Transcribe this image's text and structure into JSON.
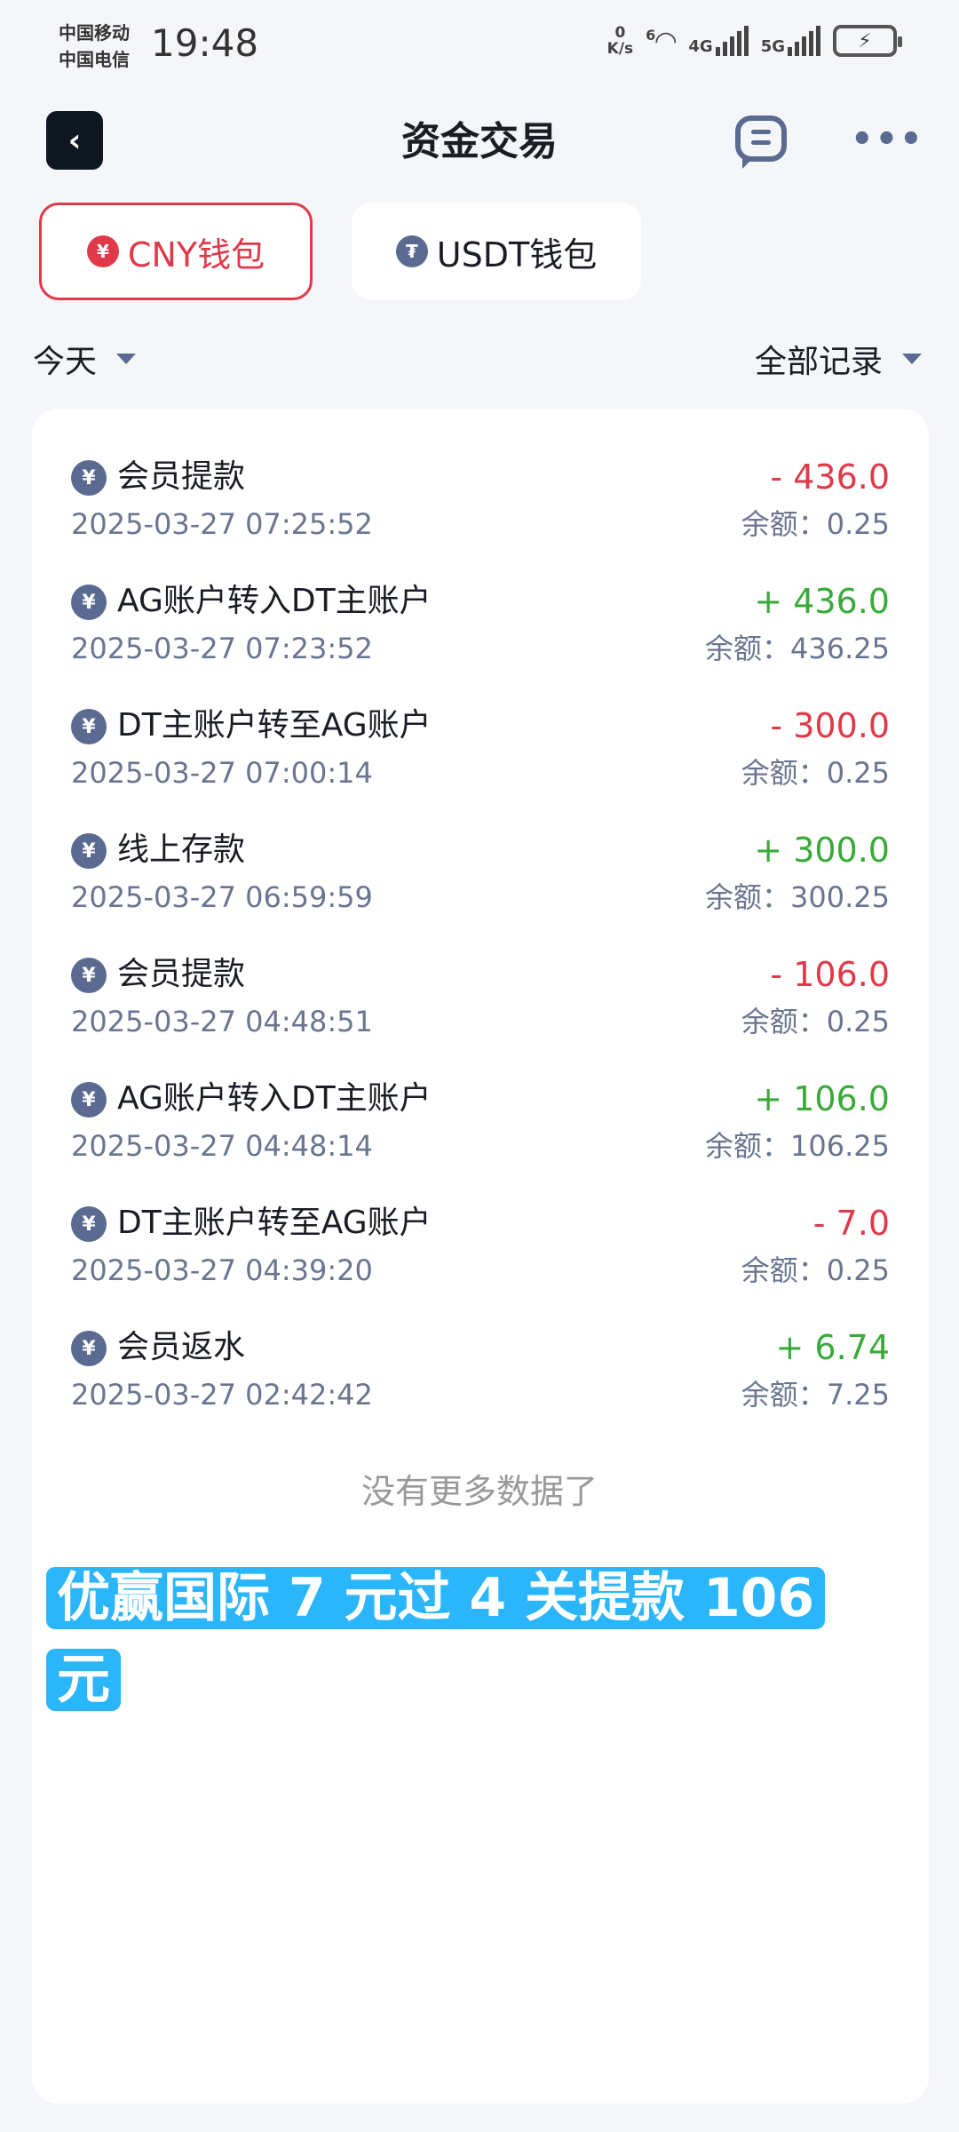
{
  "status_bar": {
    "carrier1": "中国移动",
    "carrier2": "中国电信",
    "time": "19:48",
    "net_speed_value": "0",
    "net_speed_unit": "K/s",
    "wifi_label": "6",
    "sig1_label": "4G",
    "sig2_label": "5G"
  },
  "header": {
    "title": "资金交易",
    "back_icon": "chevron-left-icon",
    "chat_icon": "message-icon",
    "more_icon": "more-dots-icon"
  },
  "tabs": [
    {
      "label": "CNY钱包",
      "icon": "¥",
      "active": true
    },
    {
      "label": "USDT钱包",
      "icon": "₮",
      "active": false
    }
  ],
  "filters": {
    "date": "今天",
    "type": "全部记录"
  },
  "colors": {
    "negative": "#e0394a",
    "positive": "#3aaa3a",
    "overlay": "#2bb5fb"
  },
  "transactions": [
    {
      "name": "会员提款",
      "date": "2025-03-27 07:25:52",
      "amount": "- 436.0",
      "sign": "neg",
      "balance": "余额：0.25"
    },
    {
      "name": "AG账户转入DT主账户",
      "date": "2025-03-27 07:23:52",
      "amount": "+ 436.0",
      "sign": "pos",
      "balance": "余额：436.25"
    },
    {
      "name": "DT主账户转至AG账户",
      "date": "2025-03-27 07:00:14",
      "amount": "- 300.0",
      "sign": "neg",
      "balance": "余额：0.25"
    },
    {
      "name": "线上存款",
      "date": "2025-03-27 06:59:59",
      "amount": "+ 300.0",
      "sign": "pos",
      "balance": "余额：300.25"
    },
    {
      "name": "会员提款",
      "date": "2025-03-27 04:48:51",
      "amount": "- 106.0",
      "sign": "neg",
      "balance": "余额：0.25"
    },
    {
      "name": "AG账户转入DT主账户",
      "date": "2025-03-27 04:48:14",
      "amount": "+ 106.0",
      "sign": "pos",
      "balance": "余额：106.25"
    },
    {
      "name": "DT主账户转至AG账户",
      "date": "2025-03-27 04:39:20",
      "amount": "- 7.0",
      "sign": "neg",
      "balance": "余额：0.25"
    },
    {
      "name": "会员返水",
      "date": "2025-03-27 02:42:42",
      "amount": "+ 6.74",
      "sign": "pos",
      "balance": "余额：7.25"
    }
  ],
  "row_icon": "¥",
  "no_more": "没有更多数据了",
  "overlay_caption": "优赢国际 7 元过 4 关提款 106 元"
}
